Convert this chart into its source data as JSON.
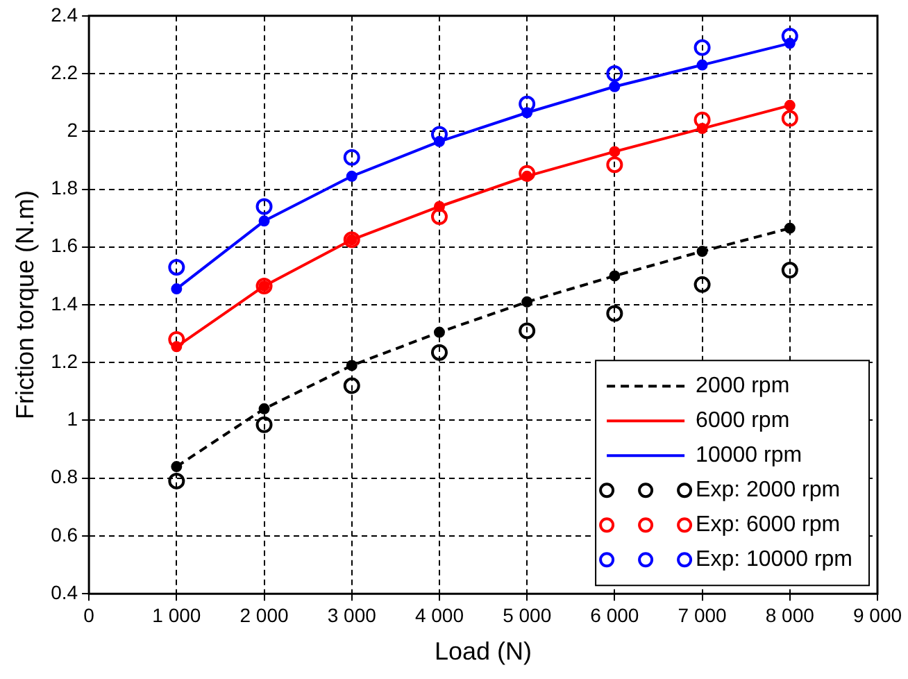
{
  "chart_data": {
    "type": "line",
    "xlabel": "Load (N)",
    "ylabel": "Friction torque (N.m)",
    "x": [
      1000,
      2000,
      3000,
      4000,
      5000,
      6000,
      7000,
      8000
    ],
    "xlim": [
      0,
      9000
    ],
    "xticks": [
      0,
      {
        "value": 1000,
        "label": "1 000"
      },
      {
        "value": 2000,
        "label": "2 000"
      },
      {
        "value": 3000,
        "label": "3 000"
      },
      {
        "value": 4000,
        "label": "4 000"
      },
      {
        "value": 5000,
        "label": "5 000"
      },
      {
        "value": 6000,
        "label": "6 000"
      },
      {
        "value": 7000,
        "label": "7 000"
      },
      {
        "value": 8000,
        "label": "8 000"
      },
      {
        "value": 9000,
        "label": "9 000"
      }
    ],
    "ylim": [
      0.4,
      2.4
    ],
    "yticks": [
      0.4,
      0.6,
      0.8,
      1,
      1.2,
      1.4,
      1.6,
      1.8,
      2,
      2.2,
      2.4
    ],
    "grid": true,
    "legend": "bottom right",
    "series": [
      {
        "name": "2000 rpm",
        "color": "#000000",
        "marker": "circle",
        "line_style": "dashed",
        "values": [
          0.84,
          1.04,
          1.19,
          1.305,
          1.41,
          1.5,
          1.585,
          1.665
        ]
      },
      {
        "name": "6000 rpm",
        "color": "#ff0000",
        "marker": "circle",
        "line_style": "solid",
        "values": [
          1.255,
          1.465,
          1.625,
          1.74,
          1.845,
          1.93,
          2.01,
          2.09
        ]
      },
      {
        "name": "10000 rpm",
        "color": "#0000ff",
        "marker": "circle",
        "line_style": "solid",
        "values": [
          1.455,
          1.69,
          1.845,
          1.965,
          2.065,
          2.155,
          2.23,
          2.305
        ]
      },
      {
        "name": "Exp: 2000 rpm",
        "type": "scatter",
        "color": "#000000",
        "marker": "circle",
        "values": [
          0.79,
          0.985,
          1.12,
          1.235,
          1.31,
          1.37,
          1.47,
          1.52
        ]
      },
      {
        "name": "Exp: 6000 rpm",
        "type": "scatter",
        "color": "#ff0000",
        "marker": "circle",
        "values": [
          1.28,
          1.465,
          1.625,
          1.705,
          1.855,
          1.885,
          2.04,
          2.045
        ]
      },
      {
        "name": "Exp: 10000 rpm",
        "type": "scatter",
        "color": "#0000ff",
        "marker": "circle",
        "values": [
          1.53,
          1.74,
          1.91,
          1.99,
          2.095,
          2.2,
          2.29,
          2.33
        ]
      }
    ]
  }
}
